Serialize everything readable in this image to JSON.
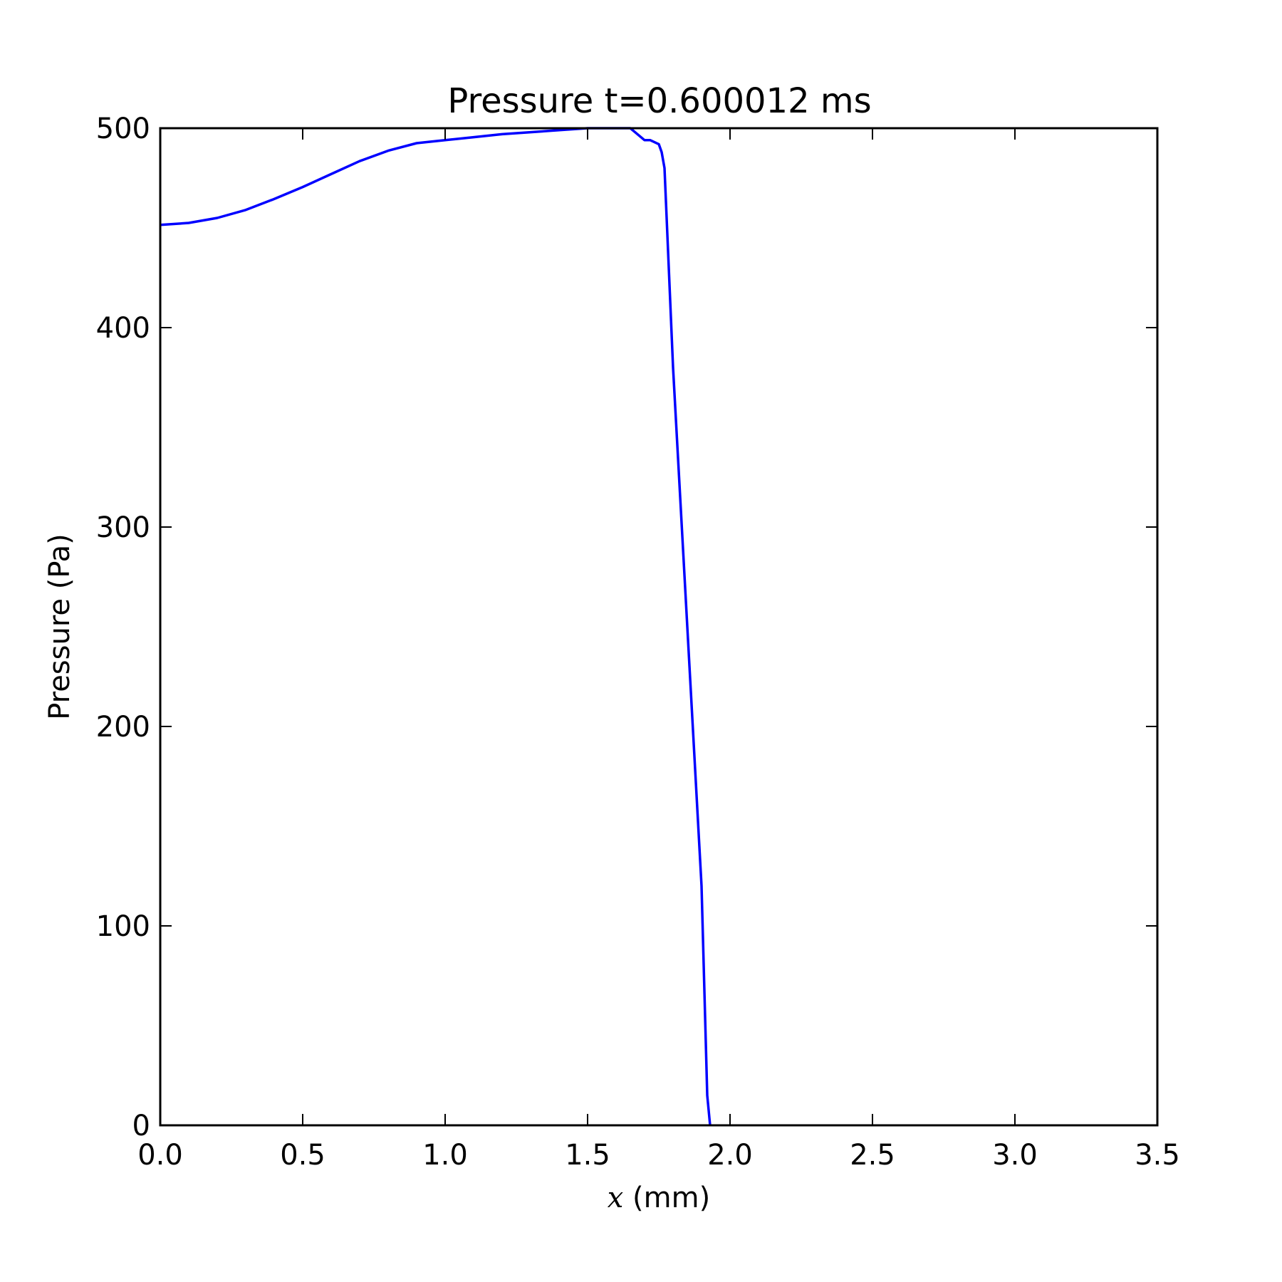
{
  "chart_data": {
    "type": "line",
    "title": "Pressure t=0.600012 ms",
    "xlabel_var": "x",
    "xlabel_unit": " (mm)",
    "ylabel": "Pressure (Pa)",
    "xlim": [
      0.0,
      3.5
    ],
    "ylim": [
      0,
      500
    ],
    "xticks": [
      0.0,
      0.5,
      1.0,
      1.5,
      2.0,
      2.5,
      3.0,
      3.5
    ],
    "xtick_labels": [
      "0.0",
      "0.5",
      "1.0",
      "1.5",
      "2.0",
      "2.5",
      "3.0",
      "3.5"
    ],
    "yticks": [
      0,
      100,
      200,
      300,
      400,
      500
    ],
    "ytick_labels": [
      "0",
      "100",
      "200",
      "300",
      "400",
      "500"
    ],
    "grid": false,
    "series": [
      {
        "color": "#0000ff",
        "x": [
          0.0,
          0.1,
          0.2,
          0.3,
          0.4,
          0.5,
          0.6,
          0.7,
          0.8,
          0.9,
          1.0,
          1.1,
          1.2,
          1.3,
          1.4,
          1.5,
          1.6,
          1.65,
          1.7,
          1.72,
          1.75,
          1.76,
          1.77,
          1.8,
          1.85,
          1.9,
          1.92,
          1.93
        ],
        "y": [
          451.5,
          452.5,
          455,
          459,
          464.5,
          470.5,
          477,
          483.5,
          488.7,
          492.5,
          494,
          495.5,
          497,
          498,
          499,
          500,
          500,
          500,
          494,
          494,
          492,
          488,
          480,
          380,
          250,
          120,
          15,
          0
        ]
      }
    ]
  }
}
